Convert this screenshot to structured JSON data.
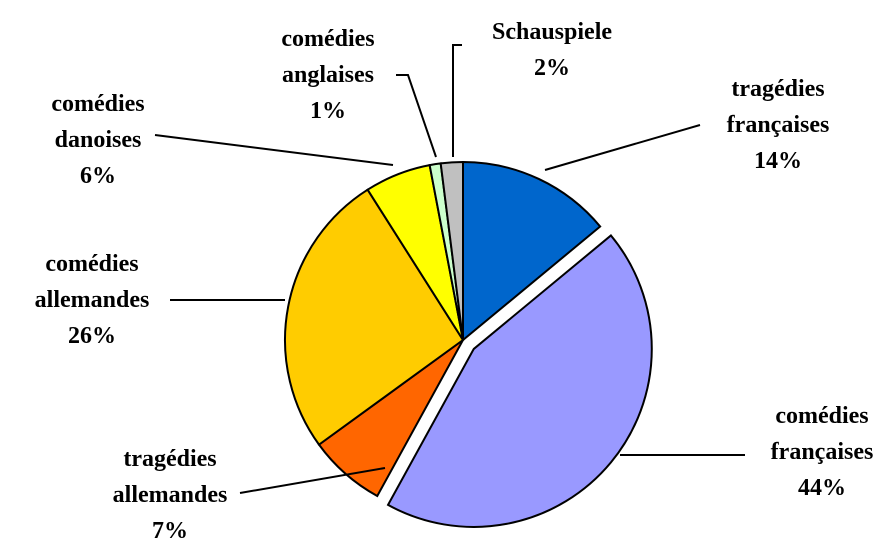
{
  "chart_data": {
    "type": "pie",
    "categories": [
      "tragédies françaises",
      "comédies françaises",
      "tragédies allemandes",
      "comédies allemandes",
      "comédies danoises",
      "comédies anglaises",
      "Schauspiele"
    ],
    "values": [
      14,
      44,
      7,
      26,
      6,
      1,
      2
    ],
    "value_labels": [
      "14%",
      "44%",
      "7%",
      "26%",
      "6%",
      "1%",
      "2%"
    ],
    "colors": [
      "#0066cc",
      "#9999ff",
      "#ff6600",
      "#ffcc00",
      "#ffff00",
      "#ccffcc",
      "#c0c0c0"
    ]
  }
}
